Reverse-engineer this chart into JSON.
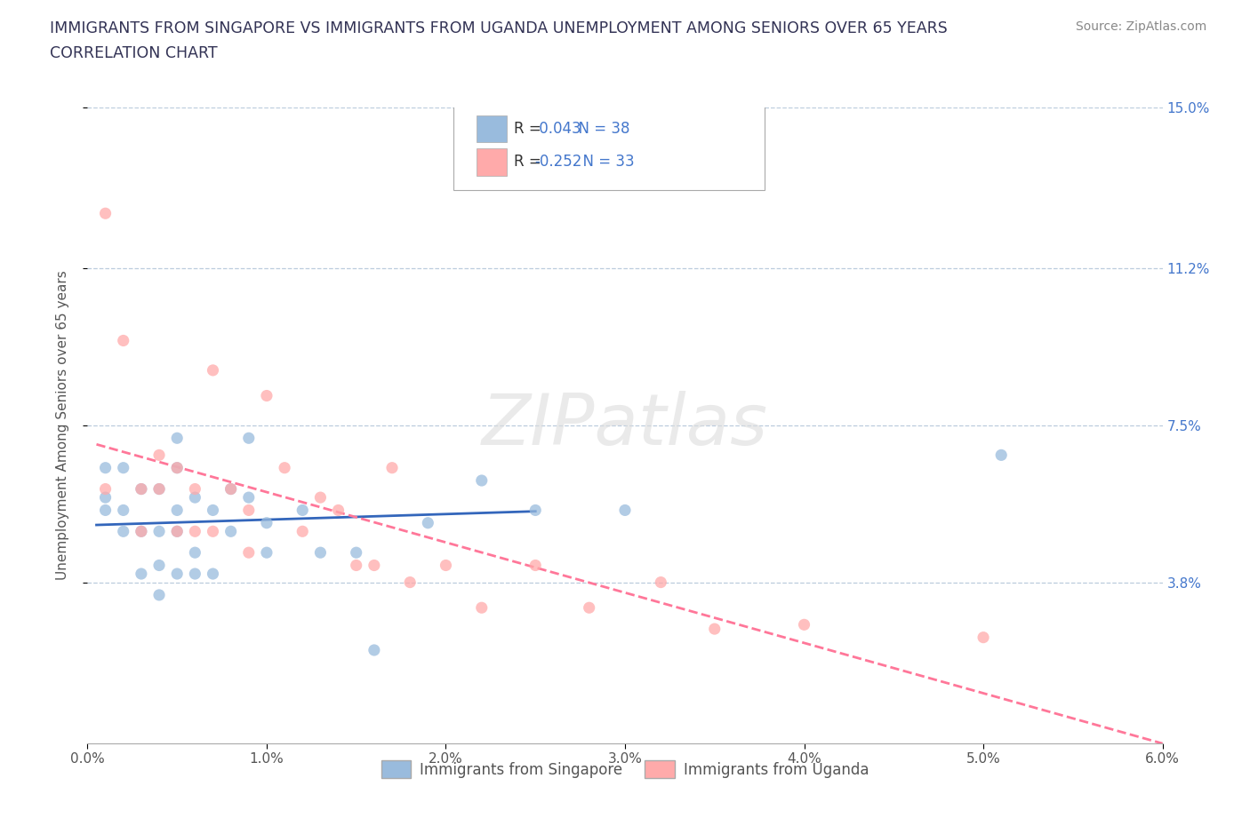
{
  "title_line1": "IMMIGRANTS FROM SINGAPORE VS IMMIGRANTS FROM UGANDA UNEMPLOYMENT AMONG SENIORS OVER 65 YEARS",
  "title_line2": "CORRELATION CHART",
  "source_text": "Source: ZipAtlas.com",
  "ylabel": "Unemployment Among Seniors over 65 years",
  "xlim": [
    0.0,
    0.06
  ],
  "ylim": [
    0.0,
    0.15
  ],
  "xtick_labels": [
    "0.0%",
    "1.0%",
    "2.0%",
    "3.0%",
    "4.0%",
    "5.0%",
    "6.0%"
  ],
  "xtick_vals": [
    0.0,
    0.01,
    0.02,
    0.03,
    0.04,
    0.05,
    0.06
  ],
  "ytick_labels": [
    "3.8%",
    "7.5%",
    "11.2%",
    "15.0%"
  ],
  "ytick_vals": [
    0.038,
    0.075,
    0.112,
    0.15
  ],
  "singapore_color": "#99BBDD",
  "uganda_color": "#FFAAAA",
  "singapore_line_color": "#3366BB",
  "uganda_line_color": "#FF7799",
  "singapore_R": "0.043",
  "singapore_N": "38",
  "uganda_R": "-0.252",
  "uganda_N": "33",
  "legend_text_color": "#333333",
  "legend_value_color": "#4477CC",
  "watermark_text": "ZIPatlas",
  "background_color": "#ffffff",
  "singapore_x": [
    0.001,
    0.001,
    0.001,
    0.002,
    0.002,
    0.002,
    0.003,
    0.003,
    0.003,
    0.004,
    0.004,
    0.004,
    0.004,
    0.005,
    0.005,
    0.005,
    0.005,
    0.005,
    0.006,
    0.006,
    0.006,
    0.007,
    0.007,
    0.008,
    0.008,
    0.009,
    0.009,
    0.01,
    0.01,
    0.012,
    0.013,
    0.015,
    0.016,
    0.019,
    0.022,
    0.025,
    0.03,
    0.051
  ],
  "singapore_y": [
    0.055,
    0.058,
    0.065,
    0.05,
    0.055,
    0.065,
    0.04,
    0.05,
    0.06,
    0.035,
    0.042,
    0.05,
    0.06,
    0.04,
    0.05,
    0.055,
    0.065,
    0.072,
    0.04,
    0.045,
    0.058,
    0.04,
    0.055,
    0.05,
    0.06,
    0.058,
    0.072,
    0.045,
    0.052,
    0.055,
    0.045,
    0.045,
    0.022,
    0.052,
    0.062,
    0.055,
    0.055,
    0.068
  ],
  "uganda_x": [
    0.001,
    0.001,
    0.002,
    0.003,
    0.003,
    0.004,
    0.004,
    0.005,
    0.005,
    0.006,
    0.006,
    0.007,
    0.007,
    0.008,
    0.009,
    0.009,
    0.01,
    0.011,
    0.012,
    0.013,
    0.014,
    0.015,
    0.016,
    0.017,
    0.018,
    0.02,
    0.022,
    0.025,
    0.028,
    0.032,
    0.035,
    0.04,
    0.05
  ],
  "uganda_y": [
    0.06,
    0.125,
    0.095,
    0.05,
    0.06,
    0.06,
    0.068,
    0.05,
    0.065,
    0.05,
    0.06,
    0.05,
    0.088,
    0.06,
    0.045,
    0.055,
    0.082,
    0.065,
    0.05,
    0.058,
    0.055,
    0.042,
    0.042,
    0.065,
    0.038,
    0.042,
    0.032,
    0.042,
    0.032,
    0.038,
    0.027,
    0.028,
    0.025
  ]
}
